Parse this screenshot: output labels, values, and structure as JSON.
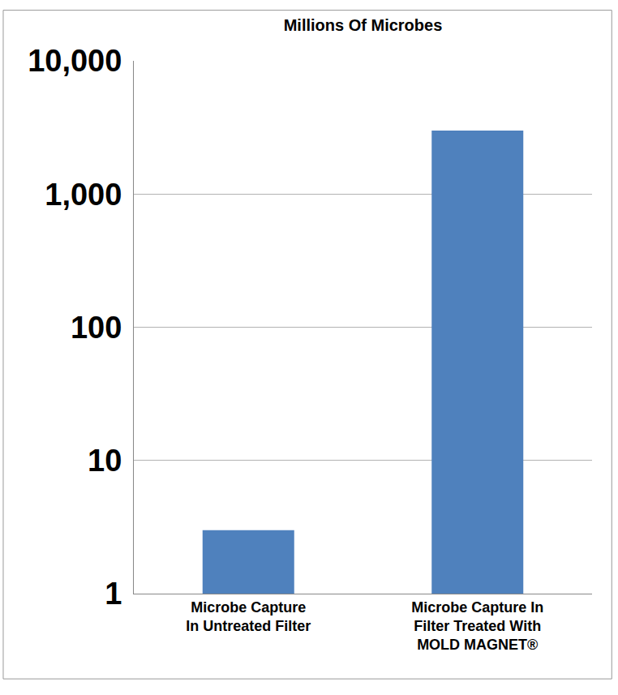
{
  "chart_data": {
    "type": "bar",
    "title": "Millions Of Microbes",
    "categories": [
      "Microbe Capture\nIn Untreated Filter",
      "Microbe Capture In\nFilter Treated With\nMOLD MAGNET®"
    ],
    "values": [
      3,
      3000
    ],
    "color": "#4f81bd",
    "log": "y",
    "ylim": [
      1,
      10000
    ],
    "yticks": [
      1,
      10,
      100,
      {
        "value": 1000,
        "label": "1,000"
      },
      {
        "value": 10000,
        "label": "10,000"
      }
    ],
    "grid": true
  }
}
